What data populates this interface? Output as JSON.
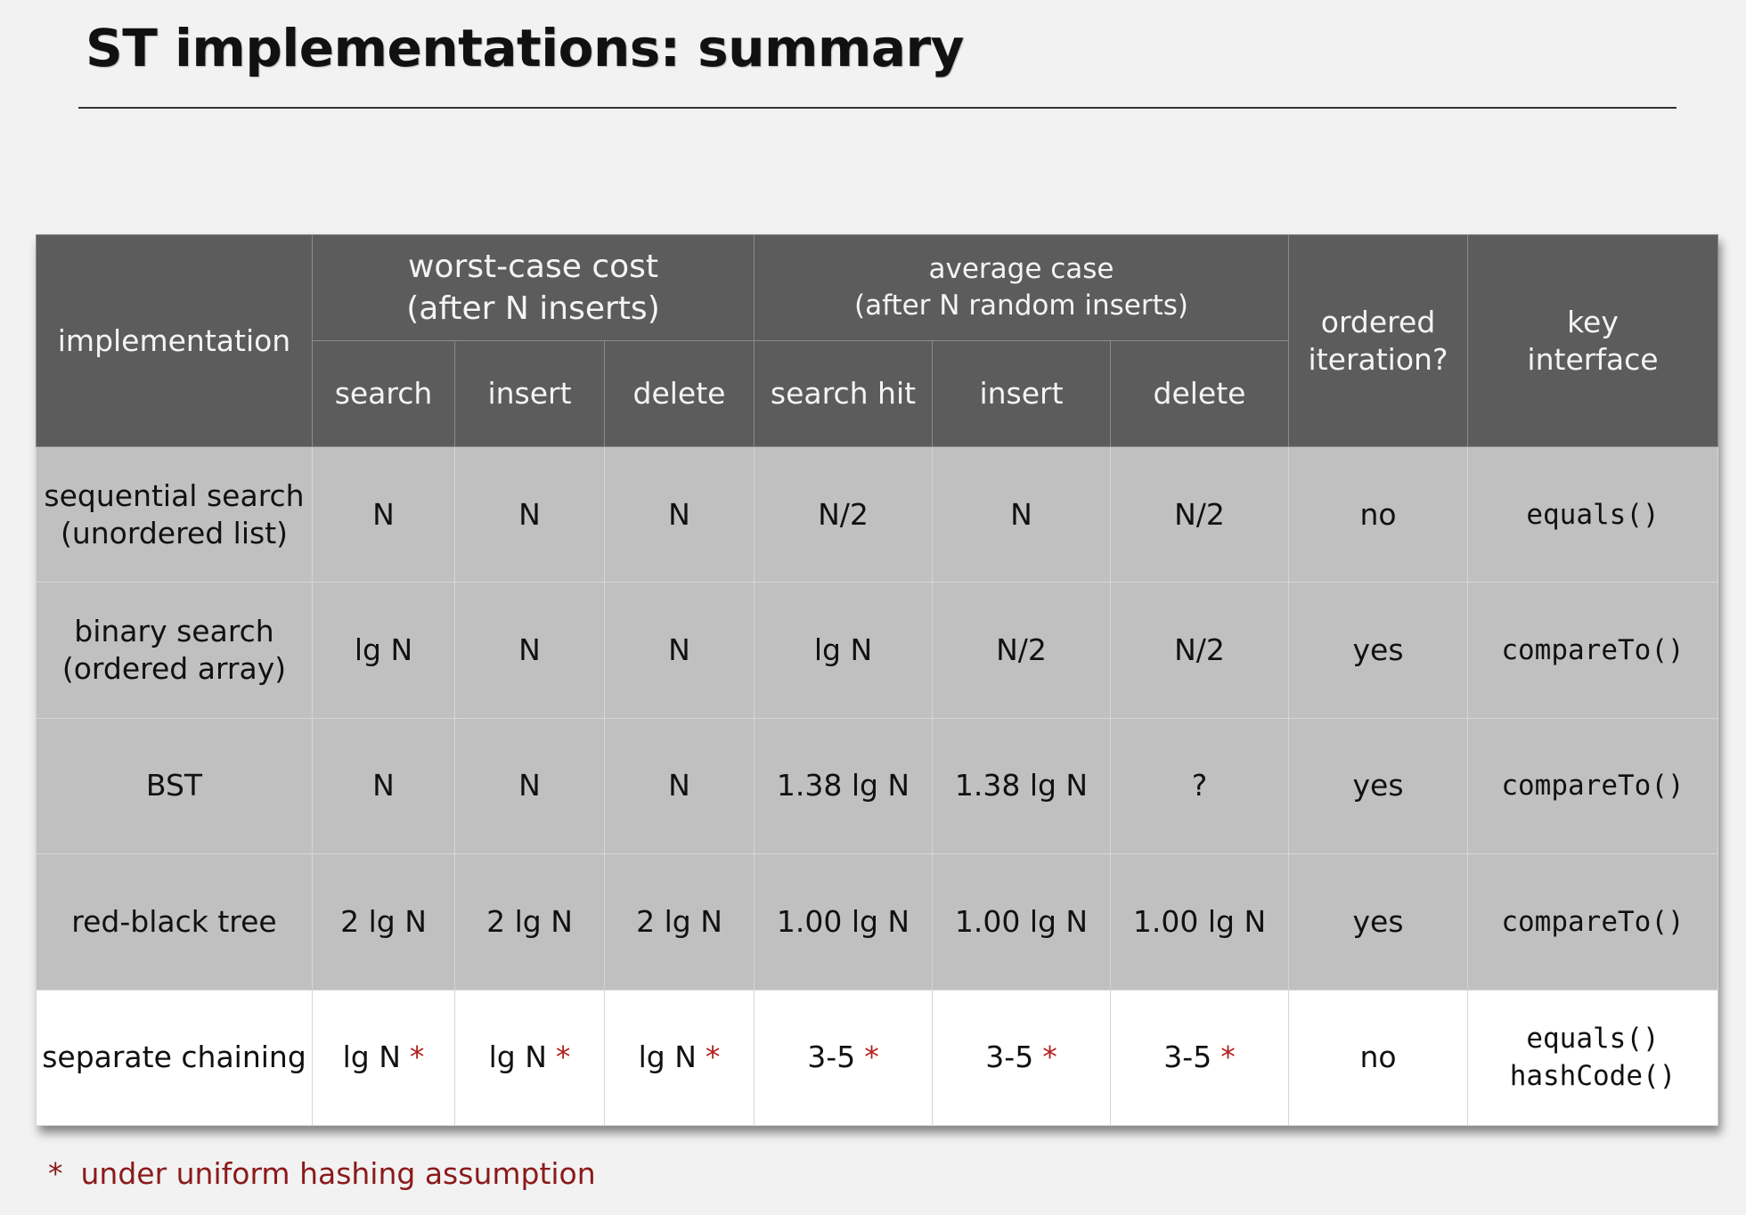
{
  "title": "ST implementations:  summary",
  "header": {
    "implementation": "implementation",
    "worst_case": "worst-case cost\n(after N inserts)",
    "average_case": "average case\n(after N random inserts)",
    "ordered_iteration": "ordered\niteration?",
    "key_interface": "key\ninterface",
    "sub": [
      "search",
      "insert",
      "delete",
      "search hit",
      "insert",
      "delete"
    ]
  },
  "rows": [
    {
      "impl": "sequential search\n(unordered list)",
      "cells": [
        "N",
        "N",
        "N",
        "N/2",
        "N",
        "N/2"
      ],
      "ordered": "no",
      "key": "equals()"
    },
    {
      "impl": "binary search\n(ordered array)",
      "cells": [
        "lg N",
        "N",
        "N",
        "lg N",
        "N/2",
        "N/2"
      ],
      "ordered": "yes",
      "key": "compareTo()"
    },
    {
      "impl": "BST",
      "cells": [
        "N",
        "N",
        "N",
        "1.38 lg N",
        "1.38 lg N",
        "?"
      ],
      "ordered": "yes",
      "key": "compareTo()"
    },
    {
      "impl": "red-black tree",
      "cells": [
        "2 lg N",
        "2 lg N",
        "2 lg N",
        "1.00 lg N",
        "1.00 lg N",
        "1.00 lg N"
      ],
      "ordered": "yes",
      "key": "compareTo()"
    },
    {
      "impl": "separate chaining",
      "cells": [
        "lg N",
        "lg N",
        "lg N",
        "3-5",
        "3-5",
        "3-5"
      ],
      "ordered": "no",
      "key": "equals()\nhashCode()"
    }
  ],
  "star": "*",
  "footnote": {
    "star": "*",
    "text": "under uniform hashing assumption"
  },
  "colors": {
    "header_bg": "#5c5c5c",
    "row_bg": "#c0c0c0",
    "highlight_row_bg": "#ffffff",
    "accent": "#b22222"
  }
}
